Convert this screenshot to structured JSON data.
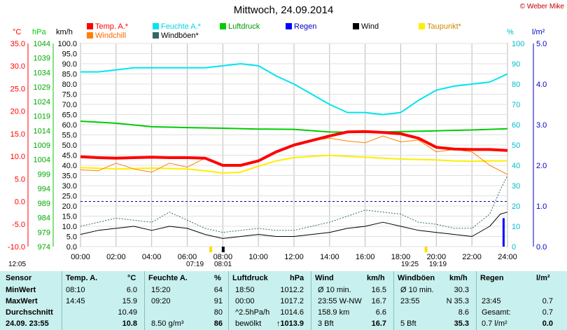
{
  "title": "Mittwoch, 24.09.2014",
  "credit": "© Weber Mike",
  "axis_units": {
    "temp": "°C",
    "press": "hPa",
    "speed": "km/h",
    "hum": "%",
    "rain": "l/m²"
  },
  "legend": [
    {
      "label": "Temp. A.*",
      "color": "#ff0000"
    },
    {
      "label": "Feuchte A.*",
      "color": "#00e5ee"
    },
    {
      "label": "Luftdruck",
      "color": "#00cc00"
    },
    {
      "label": "Regen",
      "color": "#0000ff"
    },
    {
      "label": "Wind",
      "color": "#000000"
    },
    {
      "label": "Taupunkt*",
      "color": "#ffee00"
    },
    {
      "label": "Windchill",
      "color": "#ff8000"
    },
    {
      "label": "Windböen*",
      "color": "#336666"
    }
  ],
  "times": {
    "left": "12:05",
    "sunrise": "07:19",
    "sunrise_marker": "08:01",
    "sunset": "19:25",
    "sunset_end": "19:19"
  },
  "chart_data": {
    "type": "line",
    "x_unit": "hour",
    "xlim": [
      0,
      24
    ],
    "x_ticks": [
      "00:00",
      "02:00",
      "04:00",
      "06:00",
      "08:00",
      "10:00",
      "12:00",
      "14:00",
      "16:00",
      "18:00",
      "20:00",
      "22:00",
      "24:00"
    ],
    "axes": {
      "temp": {
        "ticks": [
          "35.0",
          "30.0",
          "25.0",
          "20.0",
          "15.0",
          "10.0",
          "5.0",
          "0.0",
          "-5.0",
          "-10.0"
        ],
        "range": [
          -10,
          35
        ]
      },
      "press": {
        "ticks": [
          "1044",
          "1039",
          "1034",
          "1029",
          "1024",
          "1019",
          "1014",
          "1009",
          "1004",
          "999",
          "994",
          "989",
          "984",
          "979",
          "974"
        ],
        "range": [
          974,
          1044
        ]
      },
      "speed": {
        "ticks": [
          "100.0",
          "95.0",
          "90.0",
          "85.0",
          "80.0",
          "75.0",
          "70.0",
          "65.0",
          "60.0",
          "55.0",
          "50.0",
          "45.0",
          "40.0",
          "35.0",
          "30.0",
          "25.0",
          "20.0",
          "15.0",
          "10.0",
          "5.0",
          "0.0"
        ],
        "range": [
          0,
          100
        ]
      },
      "hum": {
        "ticks": [
          "100",
          "90",
          "80",
          "70",
          "60",
          "50",
          "40",
          "30",
          "20",
          "10",
          "0"
        ],
        "range": [
          0,
          100
        ]
      },
      "rain": {
        "ticks": [
          "5.0",
          "4.0",
          "3.0",
          "2.0",
          "1.0",
          "0.0"
        ],
        "range": [
          0,
          5
        ]
      }
    },
    "series": [
      {
        "name": "Temp. A.*",
        "axis": "temp",
        "color": "#ff0000",
        "width": 4,
        "x": [
          0,
          1,
          2,
          3,
          4,
          5,
          6,
          7,
          8,
          9,
          10,
          11,
          12,
          13,
          14,
          15,
          16,
          17,
          18,
          19,
          20,
          21,
          22,
          23,
          24
        ],
        "y": [
          9.9,
          9.7,
          9.6,
          9.7,
          9.8,
          9.7,
          9.7,
          9.6,
          8.0,
          8.0,
          9.0,
          11.0,
          12.5,
          13.5,
          14.5,
          15.4,
          15.5,
          15.3,
          15.0,
          14.0,
          12.0,
          11.6,
          11.5,
          11.5,
          11.3
        ]
      },
      {
        "name": "Feuchte A.*",
        "axis": "hum",
        "color": "#00e5ee",
        "width": 2,
        "x": [
          0,
          1,
          2,
          3,
          4,
          5,
          6,
          7,
          8,
          9,
          10,
          11,
          12,
          13,
          14,
          15,
          16,
          17,
          18,
          19,
          20,
          21,
          22,
          23,
          24
        ],
        "y": [
          86,
          86,
          87,
          88,
          88,
          88,
          88,
          88,
          89,
          90,
          89,
          84,
          80,
          75,
          70,
          66,
          66,
          65,
          66,
          72,
          77,
          79,
          80,
          81,
          85
        ]
      },
      {
        "name": "Luftdruck",
        "axis": "press",
        "color": "#00cc00",
        "width": 2,
        "x": [
          0,
          2,
          4,
          6,
          8,
          10,
          12,
          14,
          16,
          18,
          20,
          22,
          24
        ],
        "y": [
          1017.2,
          1016.5,
          1015.3,
          1015.0,
          1014.8,
          1014.5,
          1014.4,
          1013.5,
          1013.4,
          1013.6,
          1013.9,
          1014.2,
          1014.6
        ]
      },
      {
        "name": "Taupunkt*",
        "axis": "temp",
        "color": "#ffee00",
        "width": 2,
        "x": [
          0,
          2,
          4,
          6,
          7,
          8,
          9,
          10,
          11,
          12,
          13,
          14,
          15,
          16,
          17,
          18,
          19,
          20,
          21,
          22,
          23,
          24
        ],
        "y": [
          7.5,
          7.2,
          7.4,
          7.2,
          6.8,
          6.3,
          6.5,
          7.8,
          9.0,
          9.7,
          10.0,
          10.2,
          10.0,
          9.8,
          9.6,
          9.4,
          9.3,
          9.2,
          9.0,
          8.9,
          9.0,
          9.0
        ]
      },
      {
        "name": "Windchill",
        "axis": "temp",
        "color": "#ff8000",
        "width": 1,
        "x": [
          0,
          1,
          2,
          3,
          4,
          5,
          6,
          7,
          8,
          9,
          10,
          11,
          12,
          13,
          14,
          15,
          16,
          17,
          18,
          19,
          20,
          21,
          22,
          23,
          24
        ],
        "y": [
          7.0,
          6.8,
          8.5,
          7.2,
          6.5,
          8.5,
          7.6,
          9.6,
          8.0,
          8.0,
          9.0,
          11.0,
          12.5,
          13.5,
          14.0,
          13.4,
          13.0,
          14.5,
          13.2,
          13.6,
          11.0,
          11.5,
          11.0,
          8.0,
          6.0
        ]
      },
      {
        "name": "Wind",
        "axis": "speed",
        "color": "#000000",
        "width": 1,
        "x": [
          0,
          1,
          2,
          3,
          4,
          5,
          6,
          7,
          8,
          9,
          10,
          11,
          12,
          13,
          14,
          15,
          16,
          17,
          18,
          19,
          20,
          21,
          22,
          23,
          23.6,
          24
        ],
        "y": [
          6,
          8,
          9,
          10,
          8,
          10,
          9,
          6,
          4,
          5,
          6,
          5,
          5,
          6,
          7,
          9,
          10,
          12,
          10,
          8,
          7,
          6,
          5,
          10,
          16,
          17
        ]
      },
      {
        "name": "Windböen*",
        "axis": "speed",
        "color": "#336666",
        "width": 1,
        "dash": true,
        "x": [
          0,
          1,
          2,
          3,
          4,
          5,
          6,
          7,
          8,
          9,
          10,
          11,
          12,
          13,
          14,
          15,
          16,
          17,
          18,
          19,
          20,
          21,
          22,
          23,
          23.6,
          24
        ],
        "y": [
          10,
          12,
          14,
          13,
          12,
          17,
          13,
          9,
          7,
          8,
          9,
          8,
          8,
          10,
          12,
          15,
          18,
          17,
          16,
          12,
          11,
          9,
          9,
          16,
          28,
          35
        ]
      }
    ],
    "rain_bars": {
      "axis": "rain",
      "color": "#0000ff",
      "x": [
        23.8
      ],
      "y": [
        0.7
      ]
    }
  },
  "table": {
    "header": [
      "Sensor",
      "Temp. A.",
      "°C",
      "Feuchte A.",
      "%",
      "Luftdruck",
      "hPa",
      "Wind",
      "km/h",
      "Windböen",
      "km/h",
      "Regen",
      "l/m²"
    ],
    "rows": [
      {
        "label": "MinWert",
        "c": [
          "08:10",
          "6.0",
          "15:20",
          "64",
          "18:50",
          "1012.2",
          "Ø 10 min.",
          "16.5",
          "Ø 10 min.",
          "30.3",
          "",
          ""
        ]
      },
      {
        "label": "MaxWert",
        "c": [
          "14:45",
          "15.9",
          "09:20",
          "91",
          "00:00",
          "1017.2",
          "23:55   W-NW",
          "16.7",
          "23:55",
          "N 35.3",
          "23:45",
          "0.7"
        ]
      },
      {
        "label": "Durchschnitt",
        "c": [
          "",
          "10.49",
          "",
          "80",
          "^2.5hPa/h",
          "1014.6",
          "158.9 km",
          "6.6",
          "",
          "8.6",
          "Gesamt:",
          "0.7"
        ]
      },
      {
        "label": "24.09. 23:55",
        "c": [
          "",
          "10.8",
          "8.50 g/m³",
          "86",
          "bewölkt",
          "↑1013.9",
          "3 Bft",
          "16.7",
          "5 Bft",
          "35.3",
          "0.7 l/m²",
          "0.0"
        ]
      }
    ]
  }
}
